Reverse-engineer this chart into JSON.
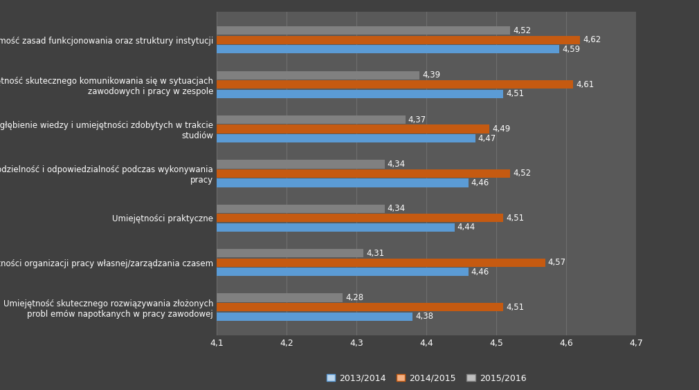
{
  "categories": [
    "Znajomość zasad funkcjonowania oraz struktury instytucji",
    "Umiejętność skutecznego komunikowania się w sytuacjach\nzawodowych i pracy w zespole",
    "Pogłębienie wiedzy i umiejętności zdobytych w trakcie\nstudiów",
    "Samodzielność i odpowiedzialność podczas wykonywania\npracy",
    "Umiejętności praktyczne",
    "Umiejętności organizacji pracy własnej/zarządzania czasem",
    "Umiejętność skutecznego rozwiązywania złożonych\nprobl emów napotkanych w pracy zawodowej"
  ],
  "series": {
    "2013/2014": [
      4.59,
      4.51,
      4.47,
      4.46,
      4.44,
      4.46,
      4.38
    ],
    "2014/2015": [
      4.62,
      4.61,
      4.49,
      4.52,
      4.51,
      4.57,
      4.51
    ],
    "2015/2016": [
      4.52,
      4.39,
      4.37,
      4.34,
      4.34,
      4.31,
      4.28
    ]
  },
  "colors": {
    "2013/2014": "#5B9BD5",
    "2014/2015": "#C55A11",
    "2015/2016": "#808080"
  },
  "legend_facecolors": {
    "2013/2014": "#BDD7EE",
    "2014/2015": "#F4B183",
    "2015/2016": "#C0C0C0"
  },
  "xlim": [
    4.1,
    4.7
  ],
  "xticks": [
    4.1,
    4.2,
    4.3,
    4.4,
    4.5,
    4.6,
    4.7
  ],
  "background_color": "#404040",
  "plot_bg_color": "#595959",
  "grid_color": "#6e6e6e",
  "text_color": "#ffffff",
  "bar_height": 0.21,
  "label_fontsize": 8.5,
  "tick_fontsize": 9,
  "value_fontsize": 8.5
}
